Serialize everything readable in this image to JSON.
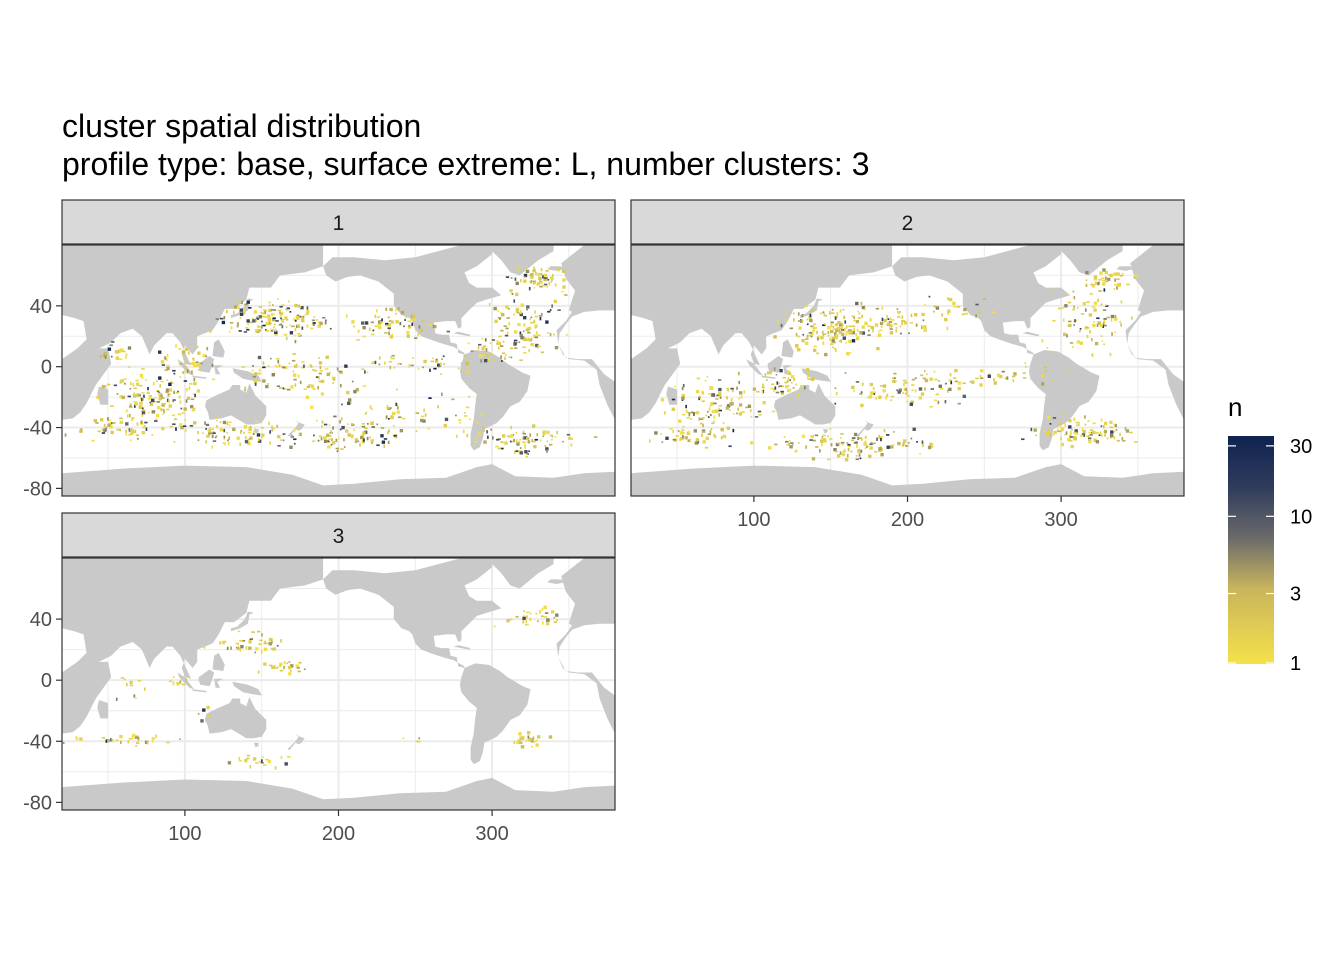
{
  "title": "cluster spatial distribution",
  "subtitle": "profile type: base, surface extreme: L, number clusters: 3",
  "colors": {
    "land": "#c9c9c9",
    "ocean": "#ffffff",
    "grid": "#ebebeb",
    "strip": "#d9d9d9",
    "strip_border": "#333333",
    "scale_low": "#f5e14a",
    "scale_mid": "#6b6b6b",
    "scale_high": "#0f2350"
  },
  "chart_data": {
    "type": "heatmap",
    "facet_by": "cluster",
    "facets": [
      {
        "label": "1",
        "count_level": "high"
      },
      {
        "label": "2",
        "count_level": "medium"
      },
      {
        "label": "3",
        "count_level": "low"
      }
    ],
    "x_axis": {
      "xlim": [
        20,
        380
      ],
      "ticks": [
        100,
        200,
        300
      ],
      "tick_labels": [
        "100",
        "200",
        "300"
      ]
    },
    "y_axis": {
      "ylim": [
        -85,
        80
      ],
      "ticks": [
        -80,
        -40,
        0,
        40
      ],
      "tick_labels": [
        "-80",
        "-40",
        "0",
        "40"
      ]
    },
    "fill_scale": {
      "title": "n",
      "trans": "log10",
      "limits": [
        1,
        35
      ],
      "breaks": [
        1,
        3,
        10,
        30
      ],
      "break_labels": [
        "1",
        "3",
        "10",
        "30"
      ]
    },
    "grid": true,
    "legend_position": "right"
  }
}
